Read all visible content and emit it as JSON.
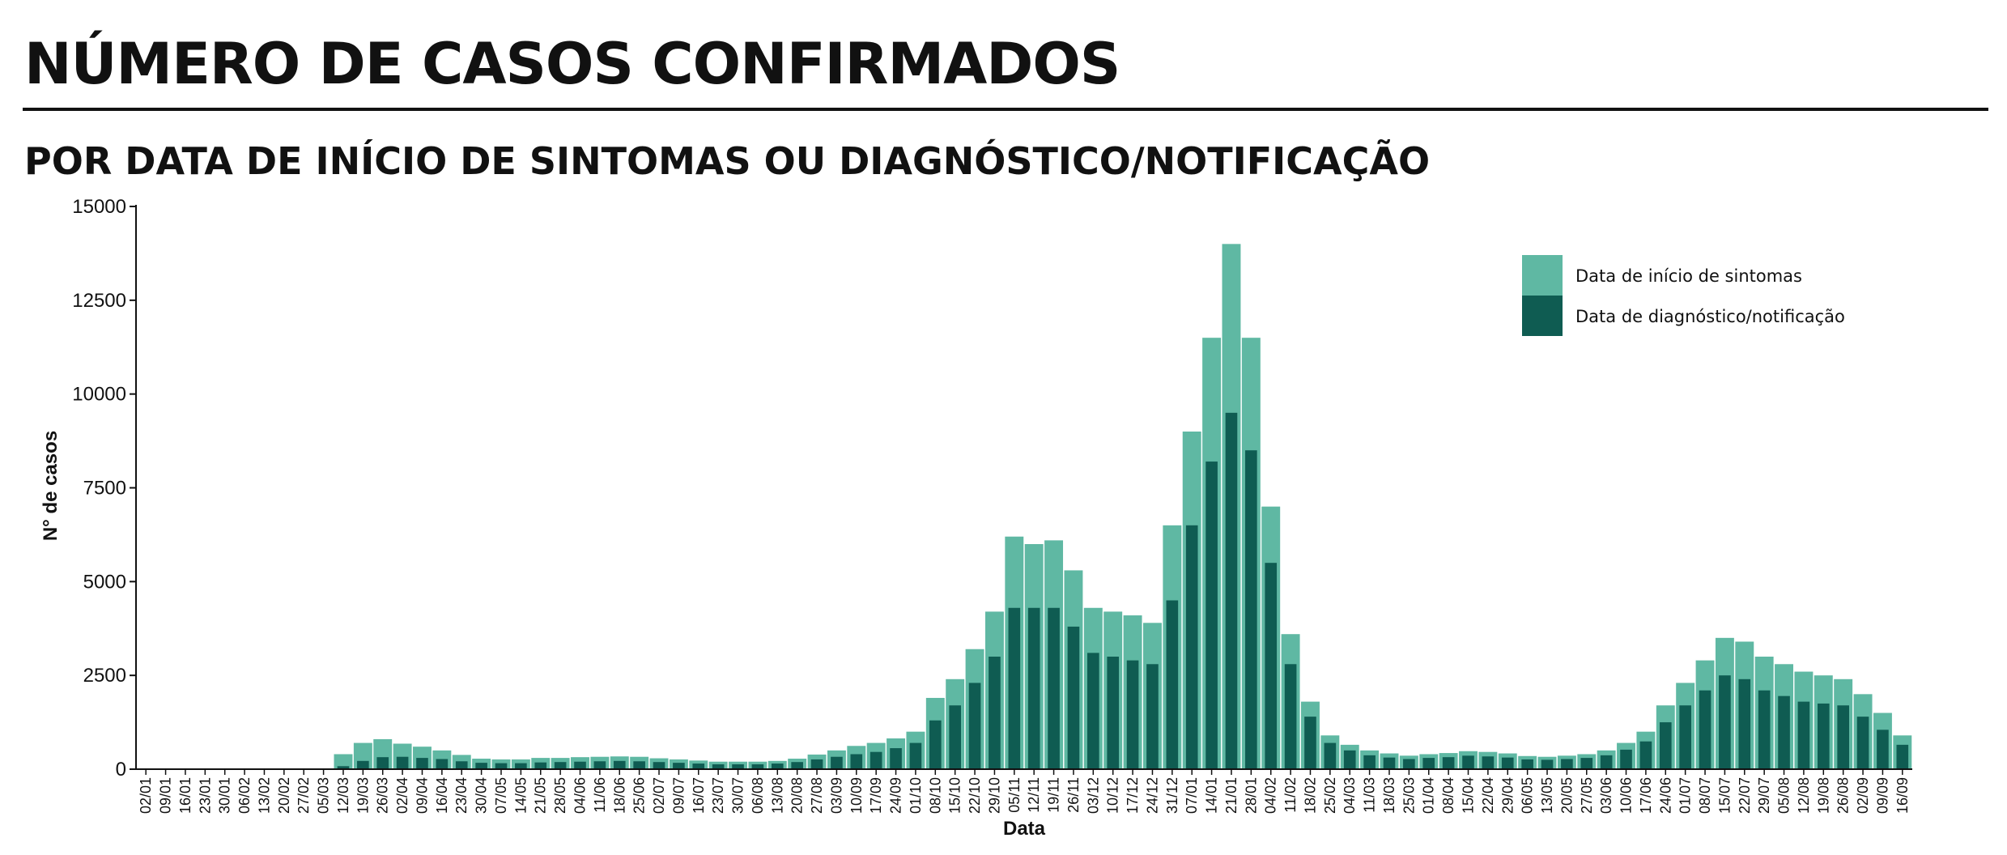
{
  "header": {
    "title": "NÚMERO DE CASOS CONFIRMADOS",
    "subtitle": "POR DATA DE INÍCIO DE SINTOMAS OU DIAGNÓSTICO/NOTIFICAÇÃO"
  },
  "chart_data": {
    "type": "bar",
    "xlabel": "Data",
    "ylabel": "N° de casos",
    "ylim": [
      0,
      15000
    ],
    "yticks": [
      0,
      2500,
      5000,
      7500,
      10000,
      12500,
      15000
    ],
    "grid": false,
    "legend_position": "top-right",
    "x_tick_labels": [
      "02/01",
      "09/01",
      "16/01",
      "23/01",
      "30/01",
      "06/02",
      "13/02",
      "20/02",
      "27/02",
      "05/03",
      "12/03",
      "19/03",
      "26/03",
      "02/04",
      "09/04",
      "16/04",
      "23/04",
      "30/04",
      "07/05",
      "14/05",
      "21/05",
      "28/05",
      "04/06",
      "11/06",
      "18/06",
      "25/06",
      "02/07",
      "09/07",
      "16/07",
      "23/07",
      "30/07",
      "06/08",
      "13/08",
      "20/08",
      "27/08",
      "03/09",
      "10/09",
      "17/09",
      "24/09",
      "01/10",
      "08/10",
      "15/10",
      "22/10",
      "29/10",
      "05/11",
      "12/11",
      "19/11",
      "26/11",
      "03/12",
      "10/12",
      "17/12",
      "24/12",
      "31/12",
      "07/01",
      "14/01",
      "21/01",
      "28/01",
      "04/02",
      "11/02",
      "18/02",
      "25/02",
      "04/03",
      "11/03",
      "18/03",
      "25/03",
      "01/04",
      "08/04",
      "15/04",
      "22/04",
      "29/04",
      "06/05",
      "13/05",
      "20/05",
      "27/05",
      "03/06",
      "10/06",
      "17/06",
      "24/06",
      "01/07",
      "08/07",
      "15/07",
      "22/07",
      "29/07",
      "05/08",
      "12/08",
      "19/08",
      "26/08",
      "02/09",
      "09/09",
      "16/09"
    ],
    "series": [
      {
        "name": "Data de início de sintomas",
        "color": "#5fb8a3",
        "values": [
          0,
          0,
          0,
          0,
          0,
          0,
          0,
          0,
          0,
          0,
          400,
          700,
          800,
          680,
          600,
          500,
          380,
          280,
          260,
          260,
          300,
          300,
          320,
          330,
          340,
          330,
          290,
          260,
          230,
          200,
          200,
          200,
          220,
          280,
          390,
          500,
          620,
          700,
          820,
          1000,
          1900,
          2400,
          3200,
          4200,
          6200,
          6000,
          6100,
          5300,
          4300,
          4200,
          4100,
          3900,
          6500,
          9000,
          11500,
          14000,
          11500,
          7000,
          3600,
          1800,
          900,
          650,
          500,
          420,
          360,
          400,
          430,
          480,
          460,
          420,
          350,
          330,
          360,
          400,
          500,
          700,
          1000,
          1700,
          2300,
          2900,
          3500,
          3400,
          3000,
          2800,
          2600,
          2500,
          2400,
          2000,
          1500,
          900
        ]
      },
      {
        "name": "Data de diagnóstico/notificação",
        "color": "#0f5c52",
        "values": [
          0,
          0,
          0,
          0,
          0,
          0,
          0,
          0,
          0,
          0,
          80,
          220,
          320,
          330,
          300,
          270,
          210,
          170,
          160,
          160,
          180,
          190,
          200,
          210,
          220,
          210,
          190,
          170,
          150,
          130,
          130,
          130,
          150,
          190,
          260,
          330,
          400,
          460,
          560,
          700,
          1300,
          1700,
          2300,
          3000,
          4300,
          4300,
          4300,
          3800,
          3100,
          3000,
          2900,
          2800,
          4500,
          6500,
          8200,
          9500,
          8500,
          5500,
          2800,
          1400,
          700,
          500,
          370,
          310,
          270,
          300,
          320,
          360,
          340,
          310,
          260,
          250,
          270,
          300,
          370,
          520,
          740,
          1250,
          1700,
          2100,
          2500,
          2400,
          2100,
          1950,
          1800,
          1750,
          1700,
          1400,
          1050,
          650
        ]
      }
    ]
  }
}
